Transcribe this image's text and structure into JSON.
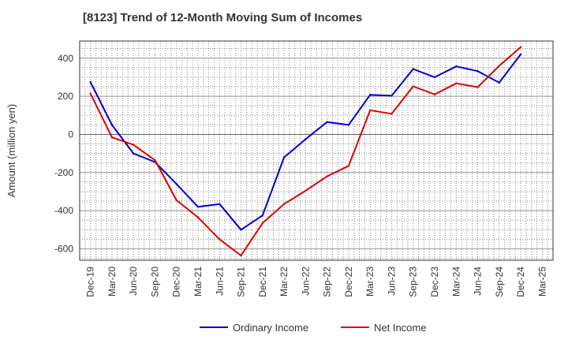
{
  "chart_data": {
    "type": "line",
    "title": "[8123]  Trend of 12-Month Moving Sum of Incomes",
    "xlabel": "",
    "ylabel": "Amount (million yen)",
    "categories": [
      "Dec-19",
      "Mar-20",
      "Jun-20",
      "Sep-20",
      "Dec-20",
      "Mar-21",
      "Jun-21",
      "Sep-21",
      "Dec-21",
      "Mar-22",
      "Jun-22",
      "Sep-22",
      "Dec-22",
      "Mar-23",
      "Jun-23",
      "Sep-23",
      "Dec-23",
      "Mar-24",
      "Jun-24",
      "Sep-24",
      "Dec-24",
      "Mar-25"
    ],
    "yticks": [
      -600,
      -400,
      -200,
      0,
      200,
      400
    ],
    "ylim": [
      -660,
      490
    ],
    "grid": true,
    "legend_position": "bottom-center",
    "series": [
      {
        "name": "Ordinary Income",
        "color": "#0000cc",
        "values": [
          275,
          50,
          -100,
          -145,
          -260,
          -380,
          -365,
          -500,
          -425,
          -120,
          -25,
          65,
          50,
          208,
          203,
          343,
          300,
          357,
          332,
          272,
          420,
          null
        ]
      },
      {
        "name": "Net Income",
        "color": "#dd0000",
        "values": [
          215,
          -15,
          -55,
          -135,
          -345,
          -435,
          -550,
          -635,
          -465,
          -365,
          -295,
          -220,
          -165,
          127,
          108,
          252,
          210,
          268,
          248,
          360,
          458,
          null
        ]
      }
    ]
  }
}
